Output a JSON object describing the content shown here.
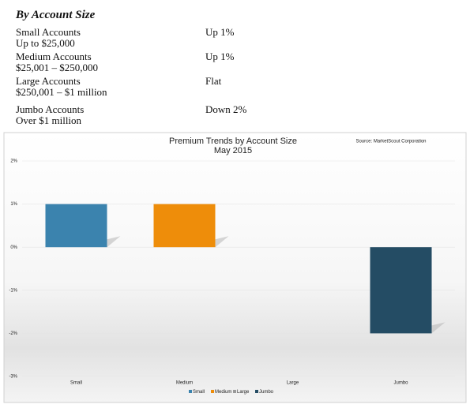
{
  "heading": "By Account Size",
  "accounts": [
    {
      "name": "Small Accounts",
      "range": "Up to $25,000",
      "trend": "Up 1%"
    },
    {
      "name": "Medium Accounts",
      "range": "$25,001 – $250,000",
      "trend": "Up 1%"
    },
    {
      "name": "Large Accounts",
      "range": "$250,001 – $1 million",
      "trend": "Flat"
    },
    {
      "name": "Jumbo Accounts",
      "range": "Over $1 million",
      "trend": "Down 2%"
    }
  ],
  "chart_data": {
    "type": "bar",
    "title": "Premium Trends by Account Size",
    "subtitle": "May 2015",
    "source": "Source: MarketScout Corporation",
    "categories": [
      "Small",
      "Medium",
      "Large",
      "Jumbo"
    ],
    "values": [
      1,
      1,
      0,
      -2
    ],
    "colors": [
      "#3b83ae",
      "#ee8d0a",
      "#9a9a9a",
      "#244c64"
    ],
    "ylim": [
      -3,
      2
    ],
    "yticks": [
      {
        "value": -3,
        "label": "-3%"
      },
      {
        "value": -2,
        "label": "-2%"
      },
      {
        "value": -1,
        "label": "-1%"
      },
      {
        "value": 0,
        "label": "0%"
      },
      {
        "value": 1,
        "label": "1%"
      },
      {
        "value": 2,
        "label": "2%"
      }
    ],
    "grid": true,
    "legend": "bottom"
  }
}
